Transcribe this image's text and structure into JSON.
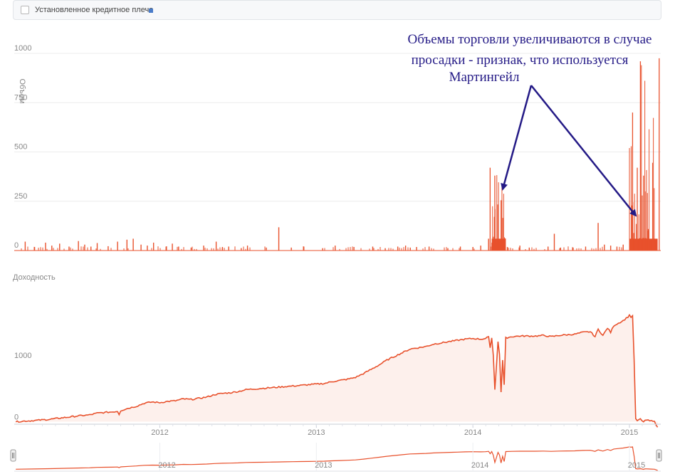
{
  "header": {
    "checkbox_label": "Установленное кредитное плечо",
    "swatch_color": "#4a7cc9"
  },
  "annotation": {
    "lines": [
      "Объемы торговли увеличиваются в случае",
      "просадки - признак, что используется",
      "Мартингейл"
    ],
    "color": "#241a86"
  },
  "chart_data": [
    {
      "type": "bar",
      "ylabel": "Объем",
      "ylim": [
        0,
        1000
      ],
      "yticks": [
        0,
        250,
        500,
        750,
        1000
      ],
      "color": "#e8512c",
      "x_unit": "decimal year",
      "xlim": [
        2011.07,
        2015.2
      ],
      "baseline": 4,
      "spikes": [
        [
          2011.14,
          45
        ],
        [
          2011.2,
          18
        ],
        [
          2011.27,
          40
        ],
        [
          2011.31,
          25
        ],
        [
          2011.36,
          35
        ],
        [
          2011.42,
          20
        ],
        [
          2011.48,
          48
        ],
        [
          2011.52,
          30
        ],
        [
          2011.56,
          20
        ],
        [
          2011.6,
          38
        ],
        [
          2011.67,
          22
        ],
        [
          2011.73,
          45
        ],
        [
          2011.79,
          55
        ],
        [
          2011.83,
          60
        ],
        [
          2011.88,
          30
        ],
        [
          2011.92,
          25
        ],
        [
          2011.96,
          40
        ],
        [
          2012.04,
          20
        ],
        [
          2012.08,
          35
        ],
        [
          2012.12,
          20
        ],
        [
          2012.2,
          15
        ],
        [
          2012.28,
          25
        ],
        [
          2012.36,
          45
        ],
        [
          2012.4,
          18
        ],
        [
          2012.44,
          20
        ],
        [
          2012.52,
          12
        ],
        [
          2012.56,
          25
        ],
        [
          2012.68,
          15
        ],
        [
          2012.76,
          118
        ],
        [
          2012.84,
          15
        ],
        [
          2012.92,
          20
        ],
        [
          2013.04,
          12
        ],
        [
          2013.12,
          25
        ],
        [
          2013.24,
          18
        ],
        [
          2013.36,
          20
        ],
        [
          2013.44,
          12
        ],
        [
          2013.52,
          20
        ],
        [
          2013.57,
          25
        ],
        [
          2013.6,
          15
        ],
        [
          2013.64,
          18
        ],
        [
          2013.72,
          20
        ],
        [
          2013.84,
          12
        ],
        [
          2013.92,
          20
        ],
        [
          2014.0,
          18
        ],
        [
          2014.05,
          25
        ],
        [
          2014.1,
          60
        ],
        [
          2014.13,
          18
        ],
        [
          2014.22,
          18
        ],
        [
          2014.3,
          25
        ],
        [
          2014.36,
          15
        ],
        [
          2014.48,
          20
        ],
        [
          2014.52,
          85
        ],
        [
          2014.56,
          15
        ],
        [
          2014.64,
          15
        ],
        [
          2014.72,
          20
        ],
        [
          2014.8,
          140
        ],
        [
          2014.84,
          30
        ],
        [
          2014.88,
          25
        ],
        [
          2014.92,
          20
        ],
        [
          2014.96,
          30
        ],
        [
          2015.1,
          300
        ],
        [
          2015.12,
          100
        ],
        [
          2015.16,
          60
        ]
      ],
      "clusters": [
        {
          "x0": 2014.12,
          "x1": 2014.21,
          "min": 40,
          "max": 420
        },
        {
          "x0": 2015.0,
          "x1": 2015.18,
          "min": 50,
          "max": 1000
        }
      ]
    },
    {
      "type": "area",
      "ylabel": "Доходность",
      "ylim": [
        -40,
        2050
      ],
      "yticks": [
        0,
        1000
      ],
      "color": "#e8512c",
      "fill": "#fdf0ec",
      "x_unit": "decimal year",
      "xlim": [
        2011.07,
        2015.2
      ],
      "xticks": [
        2012,
        2013,
        2014,
        2015
      ],
      "points": [
        [
          2011.08,
          0
        ],
        [
          2011.2,
          20
        ],
        [
          2011.3,
          40
        ],
        [
          2011.4,
          70
        ],
        [
          2011.5,
          100
        ],
        [
          2011.55,
          110
        ],
        [
          2011.6,
          140
        ],
        [
          2011.65,
          150
        ],
        [
          2011.7,
          160
        ],
        [
          2011.73,
          170
        ],
        [
          2011.74,
          120
        ],
        [
          2011.75,
          180
        ],
        [
          2011.8,
          220
        ],
        [
          2011.85,
          250
        ],
        [
          2011.9,
          300
        ],
        [
          2011.95,
          320
        ],
        [
          2012.0,
          310
        ],
        [
          2012.05,
          330
        ],
        [
          2012.1,
          340
        ],
        [
          2012.15,
          370
        ],
        [
          2012.2,
          360
        ],
        [
          2012.25,
          380
        ],
        [
          2012.3,
          400
        ],
        [
          2012.35,
          440
        ],
        [
          2012.4,
          460
        ],
        [
          2012.45,
          470
        ],
        [
          2012.5,
          490
        ],
        [
          2012.55,
          520
        ],
        [
          2012.6,
          530
        ],
        [
          2012.65,
          540
        ],
        [
          2012.7,
          550
        ],
        [
          2012.75,
          560
        ],
        [
          2012.8,
          570
        ],
        [
          2012.85,
          580
        ],
        [
          2012.9,
          590
        ],
        [
          2012.95,
          600
        ],
        [
          2013.0,
          610
        ],
        [
          2013.05,
          620
        ],
        [
          2013.1,
          650
        ],
        [
          2013.15,
          670
        ],
        [
          2013.2,
          690
        ],
        [
          2013.25,
          720
        ],
        [
          2013.3,
          780
        ],
        [
          2013.35,
          850
        ],
        [
          2013.4,
          920
        ],
        [
          2013.45,
          1000
        ],
        [
          2013.5,
          1060
        ],
        [
          2013.55,
          1120
        ],
        [
          2013.6,
          1180
        ],
        [
          2013.65,
          1200
        ],
        [
          2013.7,
          1220
        ],
        [
          2013.75,
          1260
        ],
        [
          2013.8,
          1280
        ],
        [
          2013.85,
          1300
        ],
        [
          2013.9,
          1320
        ],
        [
          2013.95,
          1340
        ],
        [
          2014.0,
          1350
        ],
        [
          2014.05,
          1340
        ],
        [
          2014.08,
          1350
        ],
        [
          2014.1,
          1380
        ],
        [
          2014.11,
          1200
        ],
        [
          2014.12,
          1360
        ],
        [
          2014.13,
          1080
        ],
        [
          2014.14,
          520
        ],
        [
          2014.15,
          900
        ],
        [
          2014.16,
          1300
        ],
        [
          2014.17,
          1100
        ],
        [
          2014.18,
          480
        ],
        [
          2014.19,
          1000
        ],
        [
          2014.2,
          600
        ],
        [
          2014.21,
          1360
        ],
        [
          2014.25,
          1380
        ],
        [
          2014.3,
          1390
        ],
        [
          2014.4,
          1390
        ],
        [
          2014.45,
          1400
        ],
        [
          2014.5,
          1380
        ],
        [
          2014.55,
          1400
        ],
        [
          2014.6,
          1410
        ],
        [
          2014.65,
          1420
        ],
        [
          2014.7,
          1450
        ],
        [
          2014.75,
          1460
        ],
        [
          2014.78,
          1380
        ],
        [
          2014.8,
          1500
        ],
        [
          2014.83,
          1400
        ],
        [
          2014.86,
          1520
        ],
        [
          2014.88,
          1450
        ],
        [
          2014.9,
          1560
        ],
        [
          2014.93,
          1600
        ],
        [
          2014.96,
          1640
        ],
        [
          2014.99,
          1700
        ],
        [
          2015.0,
          1730
        ],
        [
          2015.01,
          1700
        ],
        [
          2015.02,
          1720
        ],
        [
          2015.03,
          1000
        ],
        [
          2015.04,
          40
        ],
        [
          2015.05,
          20
        ],
        [
          2015.07,
          40
        ],
        [
          2015.09,
          -10
        ],
        [
          2015.1,
          30
        ],
        [
          2015.12,
          20
        ],
        [
          2015.14,
          10
        ],
        [
          2015.16,
          0
        ],
        [
          2015.18,
          -90
        ]
      ]
    }
  ]
}
